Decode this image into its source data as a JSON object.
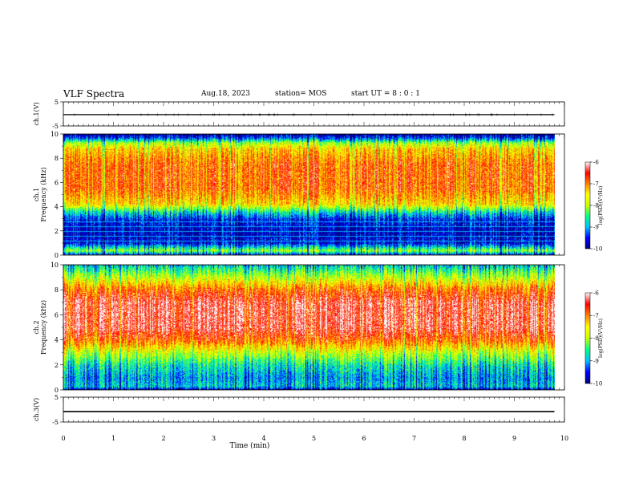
{
  "header": {
    "title": "VLF Spectra",
    "date": "Aug.18, 2023",
    "station": "station= MOS",
    "start": "start  UT =   8 : 0  : 1"
  },
  "chart_data": [
    {
      "type": "line",
      "panel": "ch1-voltage",
      "ylabel": "ch.1(V)",
      "ylim": [
        -5,
        5
      ],
      "yticks": [
        "5",
        "-5"
      ],
      "xlim": [
        0,
        10
      ],
      "series": [
        {
          "x": [
            0,
            9.8
          ],
          "values": [
            -0.3,
            -0.3
          ]
        }
      ]
    },
    {
      "type": "heatmap",
      "panel": "ch1-spectrogram",
      "ylabel": "ch.1\nFrequency (kHz)",
      "ylim": [
        0,
        10
      ],
      "yticks": [
        "0",
        "2",
        "4",
        "6",
        "8",
        "10"
      ],
      "xlim": [
        0,
        10
      ],
      "data_extent_x": [
        0,
        9.8
      ],
      "freq_profile": [
        {
          "f": 0.0,
          "level": -9.6
        },
        {
          "f": 0.4,
          "level": -8.0
        },
        {
          "f": 1.0,
          "level": -9.5
        },
        {
          "f": 2.0,
          "level": -9.7
        },
        {
          "f": 3.0,
          "level": -9.4
        },
        {
          "f": 3.6,
          "level": -8.6
        },
        {
          "f": 4.2,
          "level": -7.4
        },
        {
          "f": 5.5,
          "level": -6.8
        },
        {
          "f": 7.5,
          "level": -6.8
        },
        {
          "f": 8.8,
          "level": -7.3
        },
        {
          "f": 9.3,
          "level": -8.0
        },
        {
          "f": 9.7,
          "level": -9.3
        },
        {
          "f": 10.0,
          "level": -9.8
        }
      ],
      "colorbar": {
        "label": "log(PSD)(V²/Hz)",
        "range": [
          -10,
          -6
        ],
        "ticks": [
          "-6",
          "-7",
          "-8",
          "-9",
          "-10"
        ]
      }
    },
    {
      "type": "heatmap",
      "panel": "ch2-spectrogram",
      "ylabel": "ch.2\nFrequency (kHz)",
      "ylim": [
        0,
        10
      ],
      "yticks": [
        "0",
        "2",
        "4",
        "6",
        "8",
        "10"
      ],
      "xlim": [
        0,
        10
      ],
      "data_extent_x": [
        0,
        9.8
      ],
      "freq_profile": [
        {
          "f": 0.0,
          "level": -9.8
        },
        {
          "f": 0.3,
          "level": -8.8
        },
        {
          "f": 1.0,
          "level": -9.0
        },
        {
          "f": 2.0,
          "level": -8.6
        },
        {
          "f": 3.0,
          "level": -7.8
        },
        {
          "f": 4.0,
          "level": -6.8
        },
        {
          "f": 5.0,
          "level": -6.3
        },
        {
          "f": 7.0,
          "level": -6.3
        },
        {
          "f": 8.0,
          "level": -6.8
        },
        {
          "f": 9.0,
          "level": -7.8
        },
        {
          "f": 9.6,
          "level": -8.4
        },
        {
          "f": 10.0,
          "level": -8.8
        }
      ],
      "colorbar": {
        "label": "log(PSD)(V²/Hz)",
        "range": [
          -10,
          -6
        ],
        "ticks": [
          "-6",
          "-7",
          "-8",
          "-9",
          "-10"
        ]
      }
    },
    {
      "type": "line",
      "panel": "ch3-voltage",
      "ylabel": "ch.3(V)",
      "ylim": [
        -5,
        5
      ],
      "yticks": [
        "5",
        "-5"
      ],
      "xlim": [
        0,
        10
      ],
      "series": [
        {
          "x": [
            0,
            9.8
          ],
          "values": [
            -0.8,
            -0.8
          ]
        }
      ]
    }
  ],
  "xaxis": {
    "label": "Time (min)",
    "ticks": [
      "0",
      "1",
      "2",
      "3",
      "4",
      "5",
      "6",
      "7",
      "8",
      "9",
      "10"
    ],
    "xlim": [
      0,
      10
    ]
  },
  "colors": {
    "colormap": [
      "#000080",
      "#0000ff",
      "#00c0ff",
      "#00ff80",
      "#c8ff00",
      "#ffff00",
      "#ff8000",
      "#ff0000",
      "#ffffff"
    ],
    "trace": "#000000"
  }
}
